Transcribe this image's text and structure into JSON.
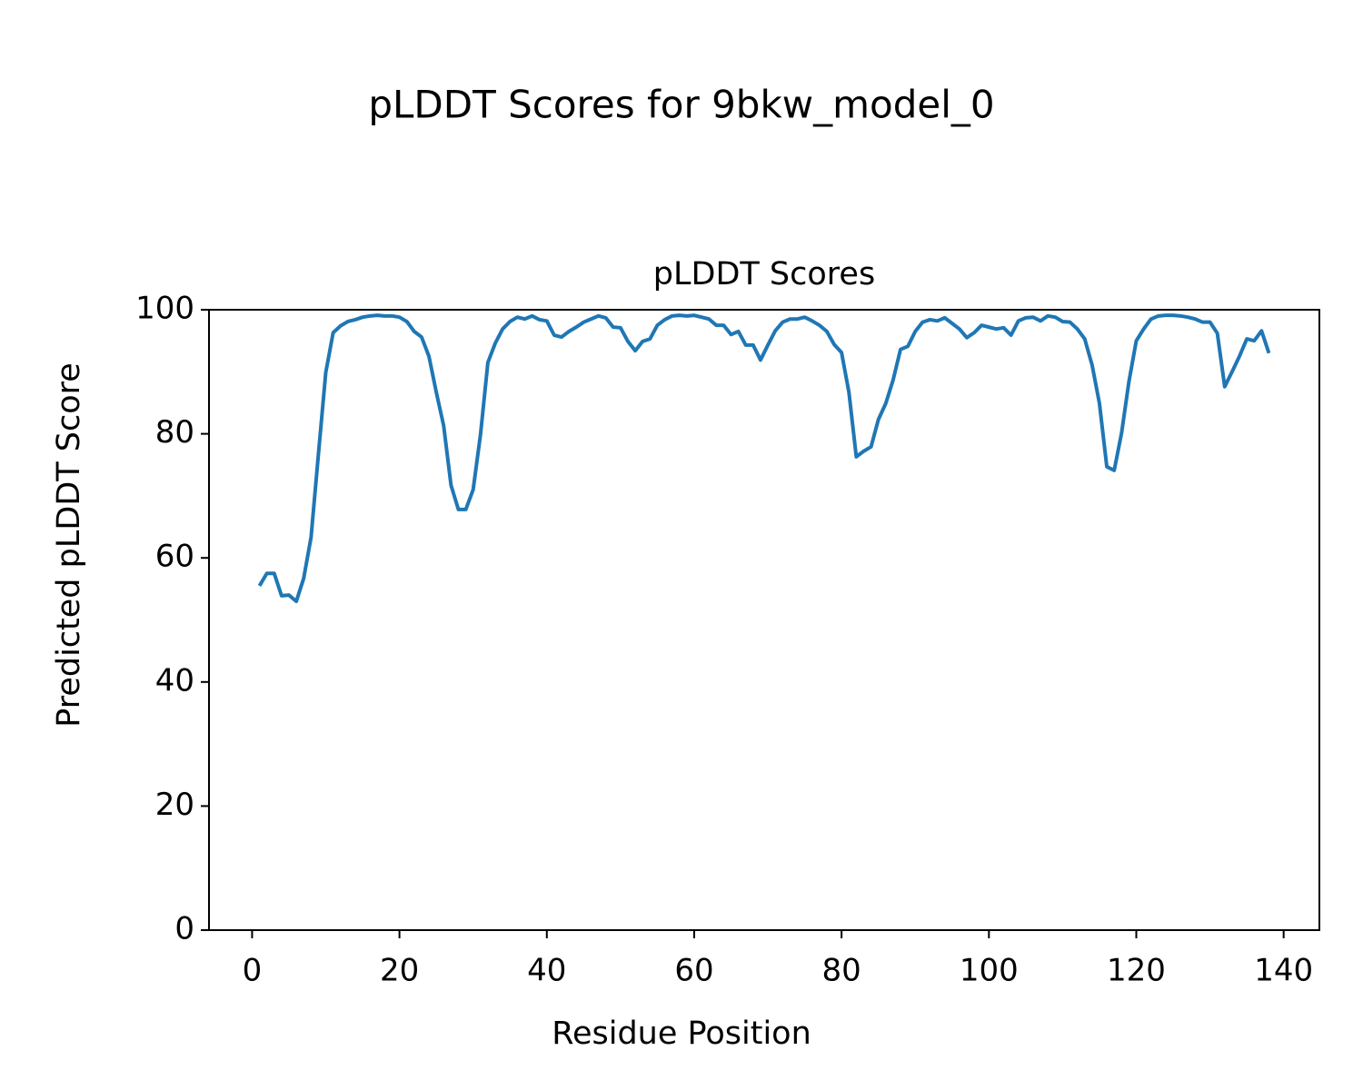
{
  "chart_data": {
    "type": "line",
    "suptitle": "pLDDT Scores for 9bkw_model_0",
    "title": "pLDDT Scores",
    "xlabel": "Residue Position",
    "ylabel": "Predicted pLDDT Score",
    "x": [
      1,
      2,
      3,
      4,
      5,
      6,
      7,
      8,
      9,
      10,
      11,
      12,
      13,
      14,
      15,
      16,
      17,
      18,
      19,
      20,
      21,
      22,
      23,
      24,
      25,
      26,
      27,
      28,
      29,
      30,
      31,
      32,
      33,
      34,
      35,
      36,
      37,
      38,
      39,
      40,
      41,
      42,
      43,
      44,
      45,
      46,
      47,
      48,
      49,
      50,
      51,
      52,
      53,
      54,
      55,
      56,
      57,
      58,
      59,
      60,
      61,
      62,
      63,
      64,
      65,
      66,
      67,
      68,
      69,
      70,
      71,
      72,
      73,
      74,
      75,
      76,
      77,
      78,
      79,
      80,
      81,
      82,
      83,
      84,
      85,
      86,
      87,
      88,
      89,
      90,
      91,
      92,
      93,
      94,
      95,
      96,
      97,
      98,
      99,
      100,
      101,
      102,
      103,
      104,
      105,
      106,
      107,
      108,
      109,
      110,
      111,
      112,
      113,
      114,
      115,
      116,
      117,
      118,
      119,
      120,
      121,
      122,
      123,
      124,
      125,
      126,
      127,
      128,
      129,
      130,
      131,
      132,
      133,
      134,
      135,
      136,
      137,
      138
    ],
    "series": [
      {
        "name": "pLDDT",
        "color": "#1f77b4",
        "values": [
          55.5,
          57.5,
          57.5,
          53.9,
          54,
          53,
          56.7,
          63.3,
          76.7,
          89.9,
          96.3,
          97.4,
          98.1,
          98.4,
          98.8,
          99,
          99.1,
          99,
          99,
          98.8,
          98.1,
          96.5,
          95.6,
          92.5,
          86.7,
          81.3,
          71.7,
          67.8,
          67.8,
          71,
          79.9,
          91.5,
          94.6,
          96.9,
          98.1,
          98.8,
          98.5,
          99,
          98.4,
          98.2,
          95.9,
          95.6,
          96.5,
          97.2,
          98,
          98.5,
          99,
          98.7,
          97.2,
          97.1,
          94.9,
          93.4,
          94.9,
          95.3,
          97.5,
          98.4,
          99,
          99.1,
          99,
          99.1,
          98.8,
          98.5,
          97.5,
          97.5,
          96,
          96.5,
          94.3,
          94.3,
          91.9,
          94.3,
          96.6,
          98,
          98.5,
          98.5,
          98.8,
          98.2,
          97.5,
          96.5,
          94.4,
          93.1,
          86.7,
          76.3,
          77.2,
          77.9,
          82.3,
          84.9,
          88.7,
          93.6,
          94.1,
          96.5,
          98,
          98.4,
          98.2,
          98.7,
          97.8,
          96.9,
          95.5,
          96.3,
          97.5,
          97.2,
          96.9,
          97.1,
          95.9,
          98.2,
          98.7,
          98.8,
          98.2,
          99,
          98.8,
          98.1,
          98,
          96.9,
          95.3,
          91.1,
          84.9,
          74.7,
          74.1,
          80.1,
          88.4,
          95,
          96.9,
          98.5,
          99,
          99.1,
          99.1,
          99,
          98.8,
          98.5,
          98,
          98,
          96.2,
          87.6,
          90,
          92.5,
          95.3,
          95,
          96.6,
          93
        ]
      }
    ],
    "xlim": [
      -5.85,
      144.85
    ],
    "xticks": [
      0,
      20,
      40,
      60,
      80,
      100,
      120,
      140
    ],
    "ylim": [
      0,
      100
    ],
    "yticks": [
      0,
      20,
      40,
      60,
      80,
      100
    ],
    "grid": false
  }
}
